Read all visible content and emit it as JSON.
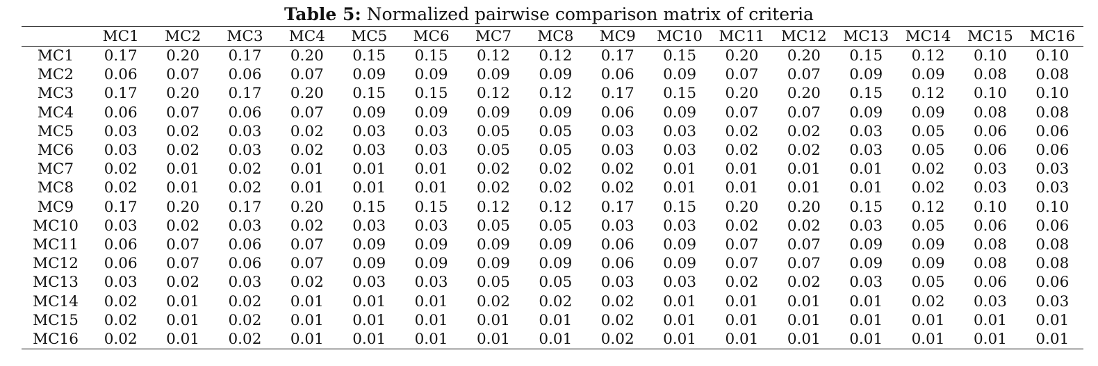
{
  "caption": {
    "label": "Table 5:",
    "text": "Normalized pairwise comparison matrix of criteria"
  },
  "table": {
    "columns": [
      "MC1",
      "MC2",
      "MC3",
      "MC4",
      "MC5",
      "MC6",
      "MC7",
      "MC8",
      "MC9",
      "MC10",
      "MC11",
      "MC12",
      "MC13",
      "MC14",
      "MC15",
      "MC16"
    ],
    "rows": [
      {
        "label": "MC1",
        "values": [
          "0.17",
          "0.20",
          "0.17",
          "0.20",
          "0.15",
          "0.15",
          "0.12",
          "0.12",
          "0.17",
          "0.15",
          "0.20",
          "0.20",
          "0.15",
          "0.12",
          "0.10",
          "0.10"
        ]
      },
      {
        "label": "MC2",
        "values": [
          "0.06",
          "0.07",
          "0.06",
          "0.07",
          "0.09",
          "0.09",
          "0.09",
          "0.09",
          "0.06",
          "0.09",
          "0.07",
          "0.07",
          "0.09",
          "0.09",
          "0.08",
          "0.08"
        ]
      },
      {
        "label": "MC3",
        "values": [
          "0.17",
          "0.20",
          "0.17",
          "0.20",
          "0.15",
          "0.15",
          "0.12",
          "0.12",
          "0.17",
          "0.15",
          "0.20",
          "0.20",
          "0.15",
          "0.12",
          "0.10",
          "0.10"
        ]
      },
      {
        "label": "MC4",
        "values": [
          "0.06",
          "0.07",
          "0.06",
          "0.07",
          "0.09",
          "0.09",
          "0.09",
          "0.09",
          "0.06",
          "0.09",
          "0.07",
          "0.07",
          "0.09",
          "0.09",
          "0.08",
          "0.08"
        ]
      },
      {
        "label": "MC5",
        "values": [
          "0.03",
          "0.02",
          "0.03",
          "0.02",
          "0.03",
          "0.03",
          "0.05",
          "0.05",
          "0.03",
          "0.03",
          "0.02",
          "0.02",
          "0.03",
          "0.05",
          "0.06",
          "0.06"
        ]
      },
      {
        "label": "MC6",
        "values": [
          "0.03",
          "0.02",
          "0.03",
          "0.02",
          "0.03",
          "0.03",
          "0.05",
          "0.05",
          "0.03",
          "0.03",
          "0.02",
          "0.02",
          "0.03",
          "0.05",
          "0.06",
          "0.06"
        ]
      },
      {
        "label": "MC7",
        "values": [
          "0.02",
          "0.01",
          "0.02",
          "0.01",
          "0.01",
          "0.01",
          "0.02",
          "0.02",
          "0.02",
          "0.01",
          "0.01",
          "0.01",
          "0.01",
          "0.02",
          "0.03",
          "0.03"
        ]
      },
      {
        "label": "MC8",
        "values": [
          "0.02",
          "0.01",
          "0.02",
          "0.01",
          "0.01",
          "0.01",
          "0.02",
          "0.02",
          "0.02",
          "0.01",
          "0.01",
          "0.01",
          "0.01",
          "0.02",
          "0.03",
          "0.03"
        ]
      },
      {
        "label": "MC9",
        "values": [
          "0.17",
          "0.20",
          "0.17",
          "0.20",
          "0.15",
          "0.15",
          "0.12",
          "0.12",
          "0.17",
          "0.15",
          "0.20",
          "0.20",
          "0.15",
          "0.12",
          "0.10",
          "0.10"
        ]
      },
      {
        "label": "MC10",
        "values": [
          "0.03",
          "0.02",
          "0.03",
          "0.02",
          "0.03",
          "0.03",
          "0.05",
          "0.05",
          "0.03",
          "0.03",
          "0.02",
          "0.02",
          "0.03",
          "0.05",
          "0.06",
          "0.06"
        ]
      },
      {
        "label": "MC11",
        "values": [
          "0.06",
          "0.07",
          "0.06",
          "0.07",
          "0.09",
          "0.09",
          "0.09",
          "0.09",
          "0.06",
          "0.09",
          "0.07",
          "0.07",
          "0.09",
          "0.09",
          "0.08",
          "0.08"
        ]
      },
      {
        "label": "MC12",
        "values": [
          "0.06",
          "0.07",
          "0.06",
          "0.07",
          "0.09",
          "0.09",
          "0.09",
          "0.09",
          "0.06",
          "0.09",
          "0.07",
          "0.07",
          "0.09",
          "0.09",
          "0.08",
          "0.08"
        ]
      },
      {
        "label": "MC13",
        "values": [
          "0.03",
          "0.02",
          "0.03",
          "0.02",
          "0.03",
          "0.03",
          "0.05",
          "0.05",
          "0.03",
          "0.03",
          "0.02",
          "0.02",
          "0.03",
          "0.05",
          "0.06",
          "0.06"
        ]
      },
      {
        "label": "MC14",
        "values": [
          "0.02",
          "0.01",
          "0.02",
          "0.01",
          "0.01",
          "0.01",
          "0.02",
          "0.02",
          "0.02",
          "0.01",
          "0.01",
          "0.01",
          "0.01",
          "0.02",
          "0.03",
          "0.03"
        ]
      },
      {
        "label": "MC15",
        "values": [
          "0.02",
          "0.01",
          "0.02",
          "0.01",
          "0.01",
          "0.01",
          "0.01",
          "0.01",
          "0.02",
          "0.01",
          "0.01",
          "0.01",
          "0.01",
          "0.01",
          "0.01",
          "0.01"
        ]
      },
      {
        "label": "MC16",
        "values": [
          "0.02",
          "0.01",
          "0.02",
          "0.01",
          "0.01",
          "0.01",
          "0.01",
          "0.01",
          "0.02",
          "0.01",
          "0.01",
          "0.01",
          "0.01",
          "0.01",
          "0.01",
          "0.01"
        ]
      }
    ]
  }
}
